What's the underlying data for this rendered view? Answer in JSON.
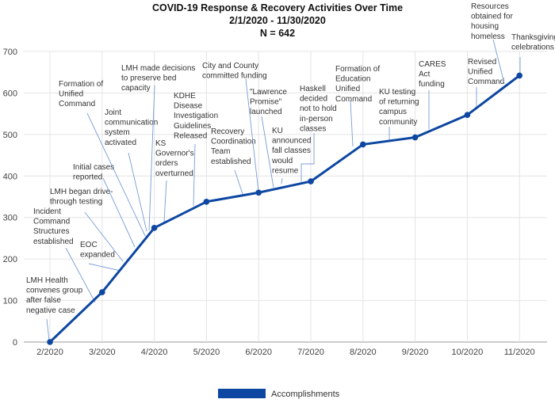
{
  "chart_data": {
    "type": "line",
    "title": [
      "COVID-19 Response & Recovery Activities Over Time",
      "2/1/2020 - 11/30/2020",
      "N = 642"
    ],
    "categories": [
      "2/2020",
      "3/2020",
      "4/2020",
      "5/2020",
      "6/2020",
      "7/2020",
      "8/2020",
      "9/2020",
      "10/2020",
      "11/2020"
    ],
    "series": [
      {
        "name": "Accomplishments",
        "values": [
          0,
          120,
          275,
          338,
          360,
          387,
          476,
          493,
          547,
          642
        ]
      }
    ],
    "ylim": [
      0,
      700
    ],
    "yticks": [
      "0",
      "100",
      "200",
      "300",
      "400",
      "500",
      "600",
      "700"
    ],
    "grid": true,
    "legend": "bottom",
    "color": "#0d47a1",
    "annotations": [
      [
        "LMH Health",
        "convenes group",
        "after false",
        "negative case"
      ],
      [
        "Incident",
        "Command",
        "Structures",
        "established"
      ],
      [
        "EOC",
        "expanded"
      ],
      [
        "LMH began drive-",
        "through testing"
      ],
      [
        "Initial cases",
        "reported"
      ],
      [
        "Joint",
        "communication",
        "system",
        "activated"
      ],
      [
        "Formation of",
        "Unified",
        "Command"
      ],
      [
        "LMH made decisions",
        "to preserve bed",
        "capacity"
      ],
      [
        "KS",
        "Governor's",
        "orders",
        "overturned"
      ],
      [
        "KDHE",
        "Disease",
        "Investigation",
        "Guidelines",
        "Released"
      ],
      [
        "Recovery",
        "Coordination",
        "Team",
        "established"
      ],
      [
        "City and County",
        "committed funding"
      ],
      [
        "\"Lawrence",
        "Promise\"",
        "launched"
      ],
      [
        "KU",
        "announced",
        "fall classes",
        "would",
        "resume"
      ],
      [
        "Haskell",
        "decided",
        "not to hold",
        "in-person",
        "classes"
      ],
      [
        "Formation of",
        "Education",
        "Unified",
        "Command"
      ],
      [
        "KU testing",
        "of returning",
        "campus",
        "community"
      ],
      [
        "CARES",
        "Act",
        "funding"
      ],
      [
        "Revised",
        "Unified",
        "Command"
      ],
      [
        "Resources",
        "obtained for",
        "housing",
        "homeless"
      ],
      [
        "Thanksgiving",
        "celebrations"
      ]
    ]
  }
}
